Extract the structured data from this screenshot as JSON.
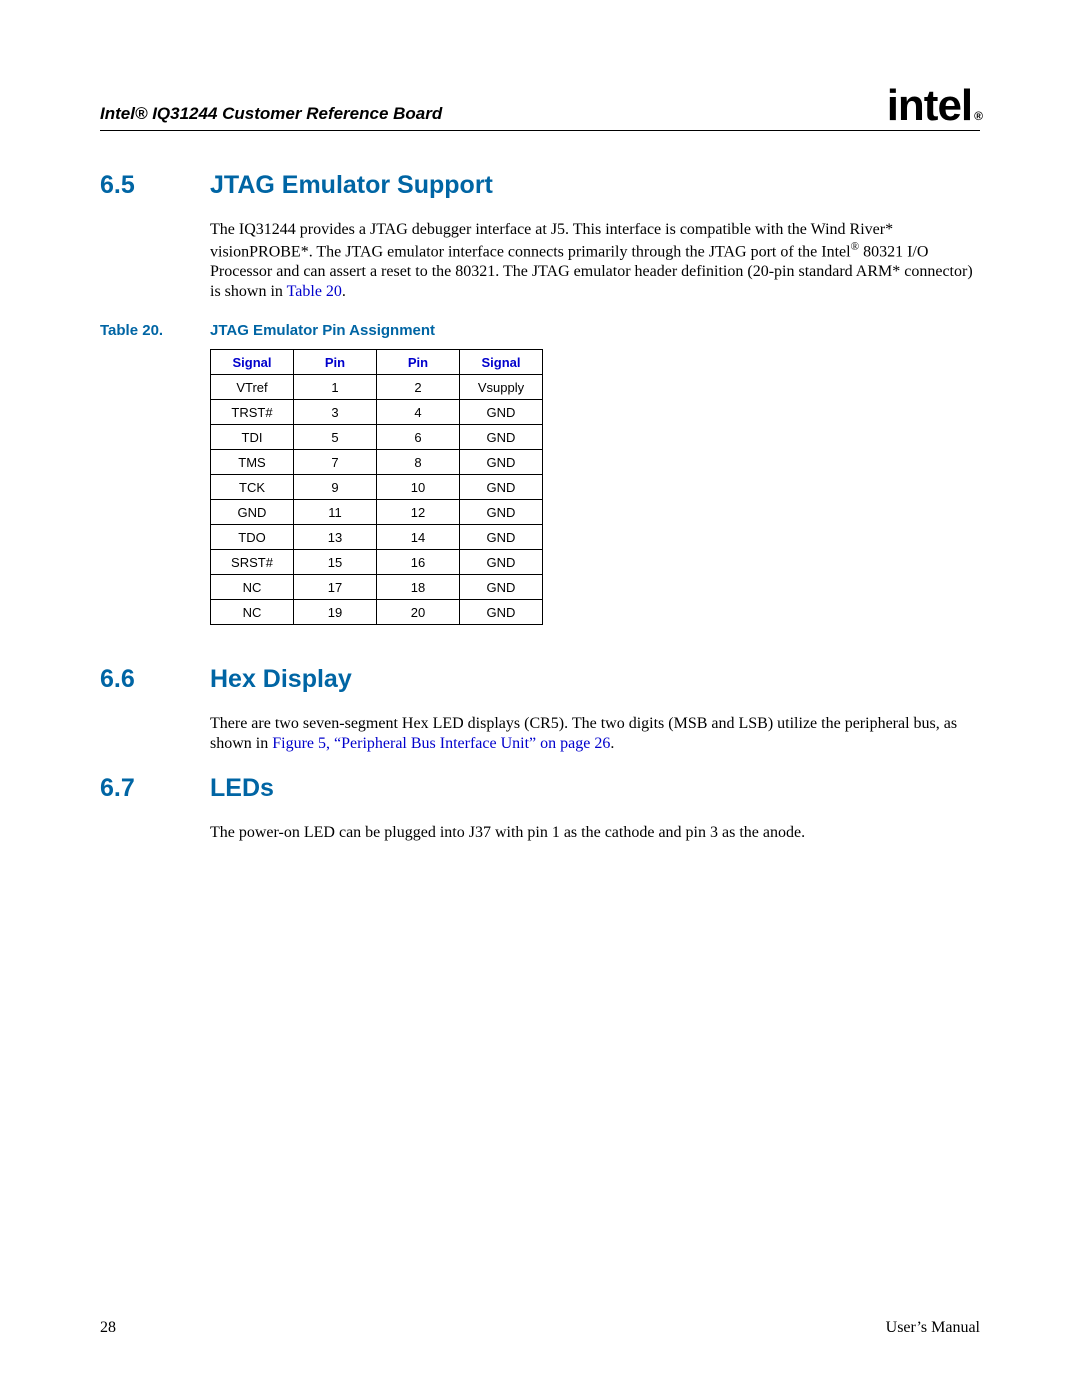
{
  "header": {
    "doc_title": "Intel® IQ31244 Customer Reference Board",
    "logo_text": "intel",
    "logo_reg": "®"
  },
  "sections": {
    "s65": {
      "num": "6.5",
      "title": "JTAG Emulator Support",
      "body_pre": "The IQ31244 provides a JTAG debugger interface at J5. This interface is compatible with the Wind River* visionPROBE*. The JTAG emulator interface connects primarily through the JTAG port of the Intel",
      "body_sup": "®",
      "body_post": " 80321 I/O Processor and can assert a reset to the 80321. The JTAG emulator header definition (20-pin standard ARM* connector) is shown in ",
      "body_link": "Table 20",
      "body_end": "."
    },
    "s66": {
      "num": "6.6",
      "title": "Hex Display",
      "body_pre": "There are two seven-segment Hex LED displays (CR5). The two digits (MSB and LSB) utilize the peripheral bus, as shown in ",
      "body_link": "Figure 5, “Peripheral Bus Interface Unit” on page 26",
      "body_end": "."
    },
    "s67": {
      "num": "6.7",
      "title": "LEDs",
      "body": "The power-on LED can be plugged into J37 with pin 1 as the cathode and pin 3 as the anode."
    }
  },
  "table": {
    "label": "Table 20.",
    "caption": "JTAG Emulator Pin Assignment",
    "headers": [
      "Signal",
      "Pin",
      "Pin",
      "Signal"
    ],
    "rows": [
      [
        "VTref",
        "1",
        "2",
        "Vsupply"
      ],
      [
        "TRST#",
        "3",
        "4",
        "GND"
      ],
      [
        "TDI",
        "5",
        "6",
        "GND"
      ],
      [
        "TMS",
        "7",
        "8",
        "GND"
      ],
      [
        "TCK",
        "9",
        "10",
        "GND"
      ],
      [
        "GND",
        "11",
        "12",
        "GND"
      ],
      [
        "TDO",
        "13",
        "14",
        "GND"
      ],
      [
        "SRST#",
        "15",
        "16",
        "GND"
      ],
      [
        "NC",
        "17",
        "18",
        "GND"
      ],
      [
        "NC",
        "19",
        "20",
        "GND"
      ]
    ]
  },
  "footer": {
    "page": "28",
    "label": "User’s Manual"
  }
}
